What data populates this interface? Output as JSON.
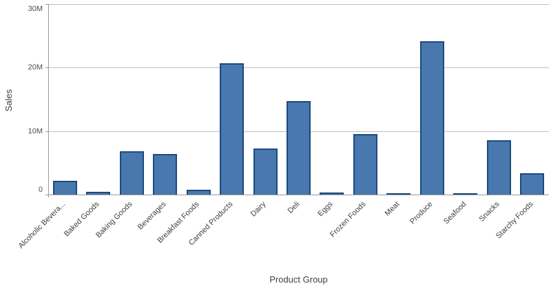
{
  "chart_data": {
    "type": "bar",
    "title": "",
    "xlabel": "Product Group",
    "ylabel": "Sales",
    "categories": [
      "Alcoholic Bevera...",
      "Baked Goods",
      "Baking Goods",
      "Beverages",
      "Breakfast Foods",
      "Canned Products",
      "Dairy",
      "Deli",
      "Eggs",
      "Frozen Foods",
      "Meat",
      "Produce",
      "Seafood",
      "Snacks",
      "Starchy Foods"
    ],
    "values_millions": [
      2.2,
      0.4,
      6.8,
      6.4,
      0.8,
      20.7,
      7.3,
      14.7,
      0.35,
      9.5,
      0.2,
      24.2,
      0.1,
      8.6,
      3.4
    ],
    "unit": "M",
    "ylim": [
      0,
      30
    ],
    "yticks": [
      {
        "value": 0,
        "label": "0"
      },
      {
        "value": 10,
        "label": "10M"
      },
      {
        "value": 20,
        "label": "20M"
      },
      {
        "value": 30,
        "label": "30M"
      }
    ],
    "grid": true,
    "legend": "none",
    "colors": {
      "bar_fill": "#4878ad",
      "bar_border": "#1b4a7e",
      "gridline": "#bfbfbf",
      "axis_line": "#999999",
      "tick_text": "#4d4d4d",
      "label_text": "#404040"
    }
  }
}
